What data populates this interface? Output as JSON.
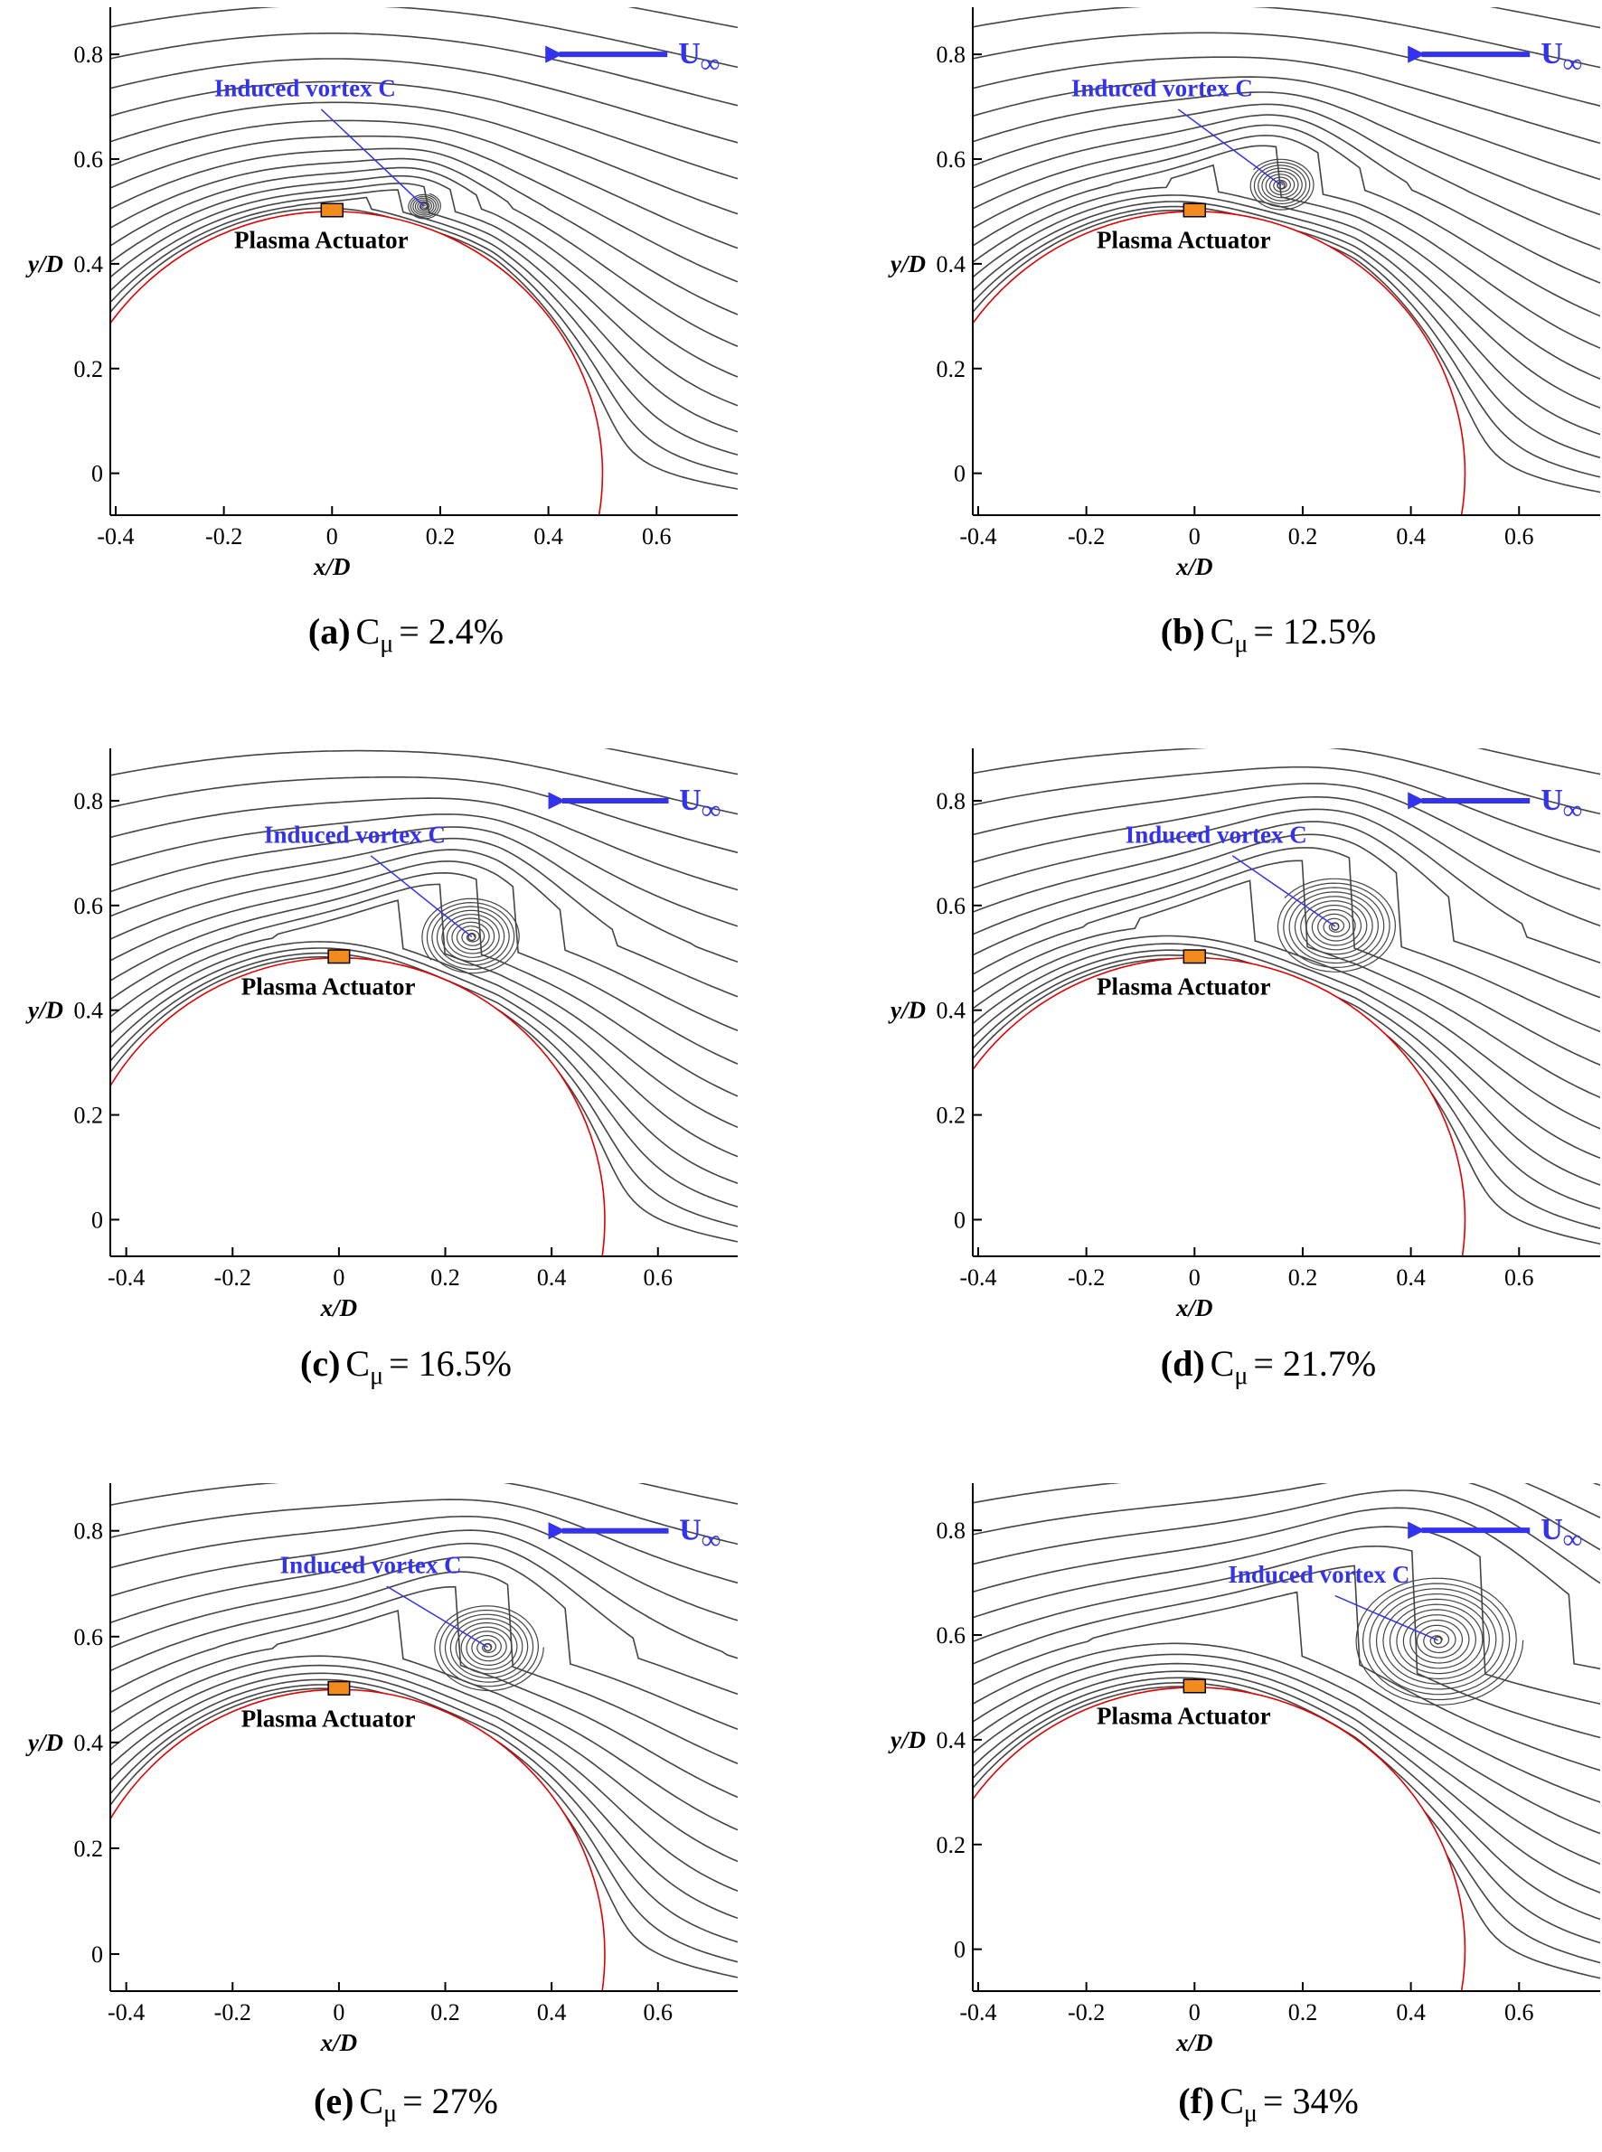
{
  "chart_data": [
    {
      "type": "streamline",
      "xlim": [
        -0.41,
        0.75
      ],
      "ylim": [
        -0.08,
        0.89
      ],
      "xticks": [
        -0.4,
        -0.2,
        0,
        0.2,
        0.4,
        0.6
      ],
      "yticks": [
        0,
        0.2,
        0.4,
        0.6,
        0.8
      ],
      "x_label": "x/D",
      "y_label": "y/D",
      "annotation": "Induced vortex  C",
      "actuator_label": "Plasma Actuator",
      "freestream_label": "U",
      "freestream_subscript": "∞",
      "vortex": {
        "x": 0.17,
        "y": 0.51,
        "size": 0.03
      },
      "caption": [
        "(a)",
        "C",
        "μ",
        "= 2.4%"
      ]
    },
    {
      "type": "streamline",
      "xlim": [
        -0.41,
        0.75
      ],
      "ylim": [
        -0.08,
        0.89
      ],
      "xticks": [
        -0.4,
        -0.2,
        0,
        0.2,
        0.4,
        0.6
      ],
      "yticks": [
        0,
        0.2,
        0.4,
        0.6,
        0.8
      ],
      "x_label": "x/D",
      "y_label": "y/D",
      "annotation": "Induced vortex  C",
      "actuator_label": "Plasma Actuator",
      "freestream_label": "U",
      "freestream_subscript": "∞",
      "vortex": {
        "x": 0.16,
        "y": 0.55,
        "size": 0.06
      },
      "caption": [
        "(b)",
        "C",
        "μ",
        "= 12.5%"
      ]
    },
    {
      "type": "streamline",
      "xlim": [
        -0.43,
        0.75
      ],
      "ylim": [
        -0.07,
        0.9
      ],
      "xticks": [
        -0.4,
        -0.2,
        0,
        0.2,
        0.4,
        0.6
      ],
      "yticks": [
        0,
        0.2,
        0.4,
        0.6,
        0.8
      ],
      "x_label": "x/D",
      "y_label": "y/D",
      "annotation": "Induced vortex  C",
      "actuator_label": "Plasma Actuator",
      "freestream_label": "U",
      "freestream_subscript": "∞",
      "vortex": {
        "x": 0.25,
        "y": 0.54,
        "size": 0.09
      },
      "caption": [
        "(c)",
        "C",
        "μ",
        "= 16.5%"
      ]
    },
    {
      "type": "streamline",
      "xlim": [
        -0.41,
        0.75
      ],
      "ylim": [
        -0.07,
        0.9
      ],
      "xticks": [
        -0.4,
        -0.2,
        0,
        0.2,
        0.4,
        0.6
      ],
      "yticks": [
        0,
        0.2,
        0.4,
        0.6,
        0.8
      ],
      "x_label": "x/D",
      "y_label": "y/D",
      "annotation": "Induced vortex  C",
      "actuator_label": "Plasma Actuator",
      "freestream_label": "U",
      "freestream_subscript": "∞",
      "vortex": {
        "x": 0.26,
        "y": 0.56,
        "size": 0.11
      },
      "caption": [
        "(d)",
        "C",
        "μ",
        "= 21.7%"
      ]
    },
    {
      "type": "streamline",
      "xlim": [
        -0.43,
        0.75
      ],
      "ylim": [
        -0.07,
        0.89
      ],
      "xticks": [
        -0.4,
        -0.2,
        0,
        0.2,
        0.4,
        0.6
      ],
      "yticks": [
        0,
        0.2,
        0.4,
        0.6,
        0.8
      ],
      "x_label": "x/D",
      "y_label": "y/D",
      "annotation": "Induced vortex  C",
      "actuator_label": "Plasma Actuator",
      "freestream_label": "U",
      "freestream_subscript": "∞",
      "vortex": {
        "x": 0.28,
        "y": 0.58,
        "size": 0.1
      },
      "caption": [
        "(e)",
        "C",
        "μ",
        "= 27%"
      ]
    },
    {
      "type": "streamline",
      "xlim": [
        -0.41,
        0.75
      ],
      "ylim": [
        -0.08,
        0.89
      ],
      "xticks": [
        -0.4,
        -0.2,
        0,
        0.2,
        0.4,
        0.6
      ],
      "yticks": [
        0,
        0.2,
        0.4,
        0.6,
        0.8
      ],
      "x_label": "x/D",
      "y_label": "y/D",
      "annotation": "Induced vortex  C",
      "actuator_label": "Plasma Actuator",
      "freestream_label": "U",
      "freestream_subscript": "∞",
      "vortex": {
        "x": 0.45,
        "y": 0.59,
        "size": 0.15
      },
      "caption": [
        "(f)",
        "C",
        "μ",
        "= 34%"
      ]
    }
  ]
}
